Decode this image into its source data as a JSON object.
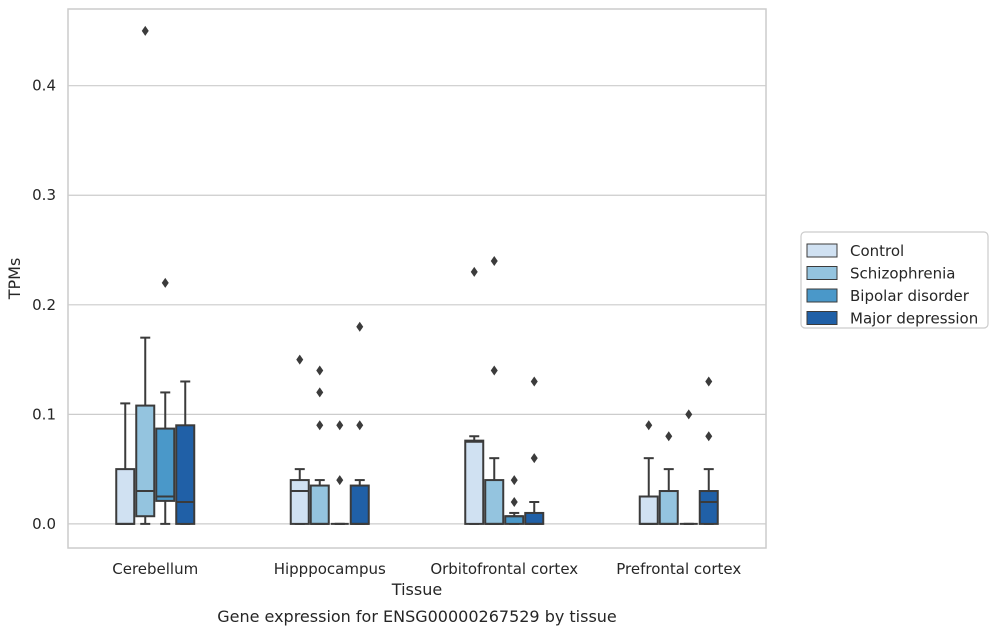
{
  "chart_data": {
    "type": "box",
    "caption": "Gene expression for ENSG00000267529 by tissue",
    "xlabel": "Tissue",
    "ylabel": "TPMs",
    "ylim": [
      -0.022,
      0.47
    ],
    "yticks": [
      0.0,
      0.1,
      0.2,
      0.3,
      0.4
    ],
    "ytick_labels": [
      "0.0",
      "0.1",
      "0.2",
      "0.3",
      "0.4"
    ],
    "grid": true,
    "legend_position": "right",
    "categories": [
      "Cerebellum",
      "Hipppocampus",
      "Orbitofrontal cortex",
      "Prefrontal cortex"
    ],
    "series": [
      {
        "name": "Control",
        "color": "#d0e1f2",
        "boxes": [
          {
            "whislo": 0.0,
            "q1": 0.0,
            "med": 0.0,
            "q3": 0.05,
            "whishi": 0.11,
            "fliers": []
          },
          {
            "whislo": 0.0,
            "q1": 0.0,
            "med": 0.03,
            "q3": 0.04,
            "whishi": 0.05,
            "fliers": [
              0.15
            ]
          },
          {
            "whislo": 0.0,
            "q1": 0.0,
            "med": 0.075,
            "q3": 0.076,
            "whishi": 0.08,
            "fliers": [
              0.23
            ]
          },
          {
            "whislo": 0.0,
            "q1": 0.0,
            "med": 0.0,
            "q3": 0.025,
            "whishi": 0.06,
            "fliers": [
              0.09
            ]
          }
        ]
      },
      {
        "name": "Schizophrenia",
        "color": "#94c4df",
        "boxes": [
          {
            "whislo": 0.0,
            "q1": 0.007,
            "med": 0.03,
            "q3": 0.108,
            "whishi": 0.17,
            "fliers": [
              0.45
            ]
          },
          {
            "whislo": 0.0,
            "q1": 0.0,
            "med": 0.0,
            "q3": 0.035,
            "whishi": 0.04,
            "fliers": [
              0.09,
              0.12,
              0.14
            ]
          },
          {
            "whislo": 0.0,
            "q1": 0.0,
            "med": 0.0,
            "q3": 0.04,
            "whishi": 0.06,
            "fliers": [
              0.14,
              0.24
            ]
          },
          {
            "whislo": 0.0,
            "q1": 0.0,
            "med": 0.0,
            "q3": 0.03,
            "whishi": 0.05,
            "fliers": [
              0.08
            ]
          }
        ]
      },
      {
        "name": "Bipolar disorder",
        "color": "#4a98c9",
        "boxes": [
          {
            "whislo": 0.0,
            "q1": 0.021,
            "med": 0.025,
            "q3": 0.087,
            "whishi": 0.12,
            "fliers": [
              0.22
            ]
          },
          {
            "whislo": 0.0,
            "q1": 0.0,
            "med": 0.0,
            "q3": 0.0,
            "whishi": 0.0,
            "fliers": [
              0.04,
              0.09
            ]
          },
          {
            "whislo": 0.0,
            "q1": 0.0,
            "med": 0.007,
            "q3": 0.007,
            "whishi": 0.01,
            "fliers": [
              0.02,
              0.04
            ]
          },
          {
            "whislo": 0.0,
            "q1": 0.0,
            "med": 0.0,
            "q3": 0.0,
            "whishi": 0.0,
            "fliers": [
              0.1
            ]
          }
        ]
      },
      {
        "name": "Major depression",
        "color": "#2060a7",
        "boxes": [
          {
            "whislo": 0.0,
            "q1": 0.0,
            "med": 0.02,
            "q3": 0.09,
            "whishi": 0.13,
            "fliers": []
          },
          {
            "whislo": 0.0,
            "q1": 0.0,
            "med": 0.0,
            "q3": 0.035,
            "whishi": 0.04,
            "fliers": [
              0.09,
              0.18
            ]
          },
          {
            "whislo": 0.0,
            "q1": 0.0,
            "med": 0.0,
            "q3": 0.01,
            "whishi": 0.02,
            "fliers": [
              0.06,
              0.13
            ]
          },
          {
            "whislo": 0.0,
            "q1": 0.0,
            "med": 0.02,
            "q3": 0.03,
            "whishi": 0.05,
            "fliers": [
              0.08,
              0.13
            ]
          }
        ]
      }
    ]
  }
}
